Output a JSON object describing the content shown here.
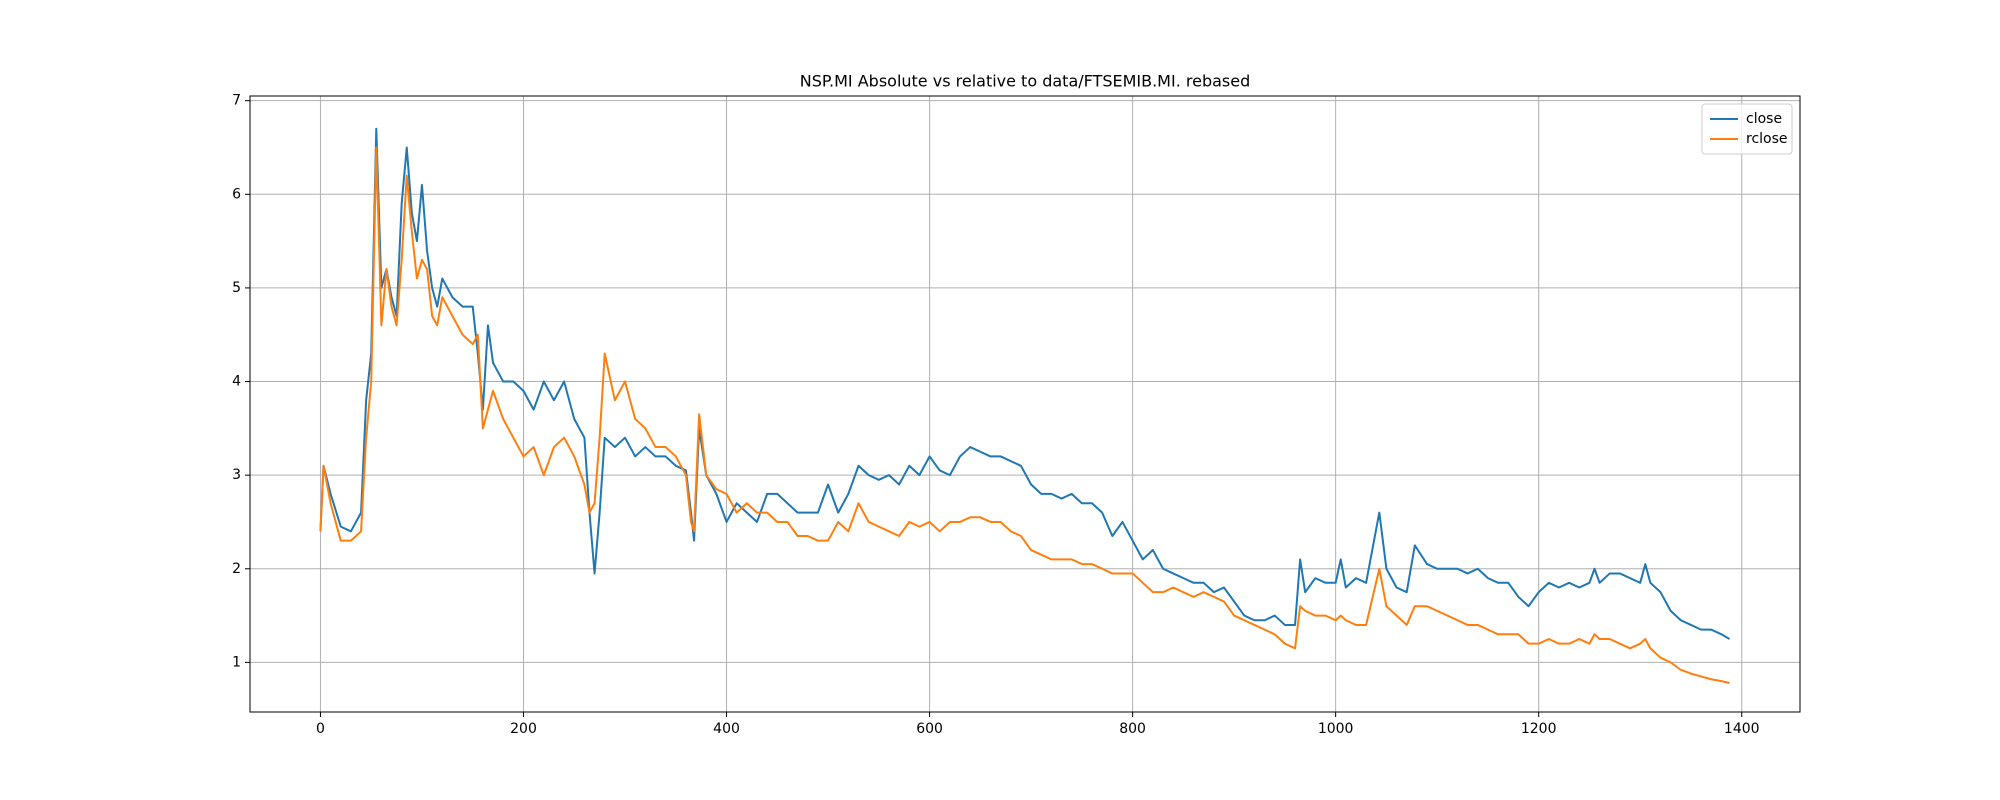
{
  "chart_data": {
    "type": "line",
    "title": "NSP.MI Absolute vs relative to data/FTSEMIB.MI. rebased",
    "x": [
      0,
      3,
      10,
      20,
      30,
      40,
      45,
      50,
      55,
      60,
      65,
      70,
      75,
      80,
      85,
      90,
      95,
      100,
      105,
      110,
      115,
      120,
      130,
      140,
      150,
      155,
      160,
      165,
      170,
      180,
      190,
      200,
      210,
      220,
      230,
      240,
      250,
      260,
      265,
      270,
      275,
      280,
      290,
      300,
      310,
      320,
      330,
      340,
      350,
      360,
      365,
      368,
      373,
      380,
      390,
      400,
      410,
      420,
      430,
      440,
      450,
      460,
      470,
      480,
      490,
      500,
      510,
      520,
      530,
      540,
      550,
      560,
      570,
      580,
      590,
      600,
      610,
      620,
      630,
      640,
      650,
      660,
      670,
      680,
      690,
      700,
      710,
      720,
      730,
      740,
      750,
      760,
      770,
      780,
      790,
      800,
      810,
      820,
      830,
      840,
      850,
      860,
      870,
      880,
      890,
      900,
      910,
      920,
      930,
      940,
      950,
      960,
      965,
      970,
      980,
      990,
      1000,
      1005,
      1010,
      1020,
      1030,
      1043,
      1050,
      1060,
      1070,
      1078,
      1090,
      1100,
      1110,
      1120,
      1130,
      1140,
      1150,
      1160,
      1170,
      1180,
      1190,
      1200,
      1210,
      1220,
      1230,
      1240,
      1250,
      1255,
      1260,
      1270,
      1280,
      1290,
      1300,
      1305,
      1310,
      1320,
      1330,
      1340,
      1350,
      1360,
      1370,
      1380,
      1388
    ],
    "series": [
      {
        "name": "close",
        "color": "#1f77b4",
        "values": [
          2.4,
          3.1,
          2.8,
          2.45,
          2.4,
          2.6,
          3.8,
          4.3,
          6.7,
          5.0,
          5.2,
          4.9,
          4.7,
          5.9,
          6.5,
          5.8,
          5.5,
          6.1,
          5.4,
          5.0,
          4.8,
          5.1,
          4.9,
          4.8,
          4.8,
          4.3,
          3.7,
          4.6,
          4.2,
          4.0,
          4.0,
          3.9,
          3.7,
          4.0,
          3.8,
          4.0,
          3.6,
          3.4,
          2.6,
          1.95,
          2.6,
          3.4,
          3.3,
          3.4,
          3.2,
          3.3,
          3.2,
          3.2,
          3.1,
          3.05,
          2.6,
          2.3,
          3.5,
          3.0,
          2.8,
          2.5,
          2.7,
          2.6,
          2.5,
          2.8,
          2.8,
          2.7,
          2.6,
          2.6,
          2.6,
          2.9,
          2.6,
          2.8,
          3.1,
          3.0,
          2.95,
          3.0,
          2.9,
          3.1,
          3.0,
          3.2,
          3.05,
          3.0,
          3.2,
          3.3,
          3.25,
          3.2,
          3.2,
          3.15,
          3.1,
          2.9,
          2.8,
          2.8,
          2.75,
          2.8,
          2.7,
          2.7,
          2.6,
          2.35,
          2.5,
          2.3,
          2.1,
          2.2,
          2.0,
          1.95,
          1.9,
          1.85,
          1.85,
          1.75,
          1.8,
          1.65,
          1.5,
          1.45,
          1.45,
          1.5,
          1.4,
          1.4,
          2.1,
          1.75,
          1.9,
          1.85,
          1.85,
          2.1,
          1.8,
          1.9,
          1.85,
          2.6,
          2.0,
          1.8,
          1.75,
          2.25,
          2.05,
          2.0,
          2.0,
          2.0,
          1.95,
          2.0,
          1.9,
          1.85,
          1.85,
          1.7,
          1.6,
          1.75,
          1.85,
          1.8,
          1.85,
          1.8,
          1.85,
          2.0,
          1.85,
          1.95,
          1.95,
          1.9,
          1.85,
          2.05,
          1.85,
          1.75,
          1.55,
          1.45,
          1.4,
          1.35,
          1.35,
          1.3,
          1.25
        ]
      },
      {
        "name": "rclose",
        "color": "#ff7f0e",
        "values": [
          2.4,
          3.1,
          2.7,
          2.3,
          2.3,
          2.4,
          3.4,
          4.0,
          6.5,
          4.6,
          5.2,
          4.8,
          4.6,
          5.3,
          6.2,
          5.6,
          5.1,
          5.3,
          5.2,
          4.7,
          4.6,
          4.9,
          4.7,
          4.5,
          4.4,
          4.5,
          3.5,
          3.7,
          3.9,
          3.6,
          3.4,
          3.2,
          3.3,
          3.0,
          3.3,
          3.4,
          3.2,
          2.9,
          2.6,
          2.7,
          3.4,
          4.3,
          3.8,
          4.0,
          3.6,
          3.5,
          3.3,
          3.3,
          3.2,
          3.0,
          2.5,
          2.4,
          3.65,
          3.0,
          2.85,
          2.8,
          2.6,
          2.7,
          2.6,
          2.6,
          2.5,
          2.5,
          2.35,
          2.35,
          2.3,
          2.3,
          2.5,
          2.4,
          2.7,
          2.5,
          2.45,
          2.4,
          2.35,
          2.5,
          2.45,
          2.5,
          2.4,
          2.5,
          2.5,
          2.55,
          2.55,
          2.5,
          2.5,
          2.4,
          2.35,
          2.2,
          2.15,
          2.1,
          2.1,
          2.1,
          2.05,
          2.05,
          2.0,
          1.95,
          1.95,
          1.95,
          1.85,
          1.75,
          1.75,
          1.8,
          1.75,
          1.7,
          1.75,
          1.7,
          1.65,
          1.5,
          1.45,
          1.4,
          1.35,
          1.3,
          1.2,
          1.15,
          1.6,
          1.55,
          1.5,
          1.5,
          1.45,
          1.5,
          1.45,
          1.4,
          1.4,
          2.0,
          1.6,
          1.5,
          1.4,
          1.6,
          1.6,
          1.55,
          1.5,
          1.45,
          1.4,
          1.4,
          1.35,
          1.3,
          1.3,
          1.3,
          1.2,
          1.2,
          1.25,
          1.2,
          1.2,
          1.25,
          1.2,
          1.3,
          1.25,
          1.25,
          1.2,
          1.15,
          1.2,
          1.25,
          1.15,
          1.05,
          1.0,
          0.92,
          0.88,
          0.85,
          0.82,
          0.8,
          0.78
        ]
      }
    ],
    "xlim": [
      -69.4,
      1457.4
    ],
    "xticks": [
      0,
      200,
      400,
      600,
      800,
      1000,
      1200,
      1400
    ],
    "ylim": [
      0.47,
      7.05
    ],
    "yticks": [
      1,
      2,
      3,
      4,
      5,
      6,
      7
    ],
    "grid": true,
    "legend": "upper right"
  }
}
